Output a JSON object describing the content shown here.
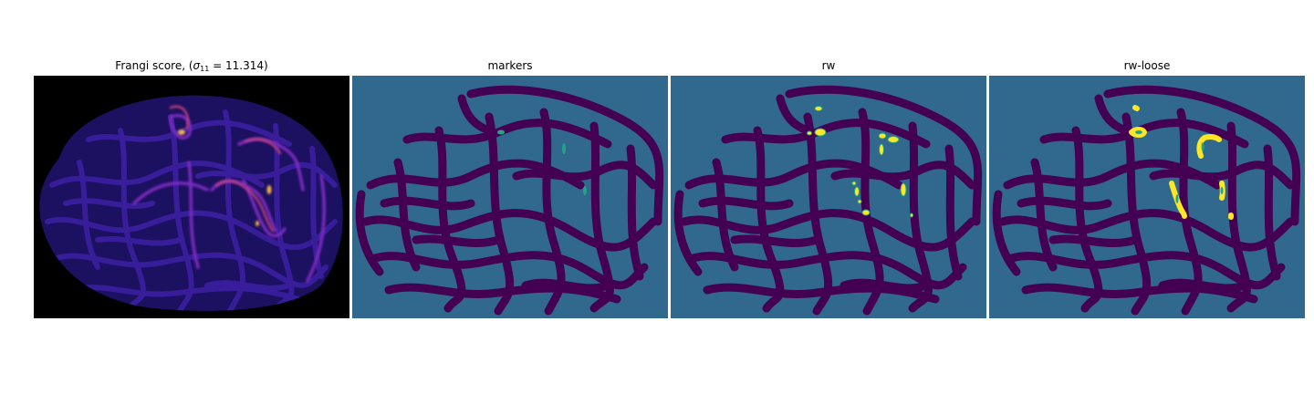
{
  "panels": [
    {
      "title_prefix": "Frangi score, (",
      "title_sigma": "σ",
      "title_sub": "11",
      "title_rest": " = 11.314)"
    },
    {
      "title": "markers"
    },
    {
      "title": "rw"
    },
    {
      "title": "rw-loose"
    }
  ],
  "colors": {
    "frangi_background": "#000000",
    "frangi_low": "#3a1f9e",
    "frangi_mid": "#8b2fc9",
    "frangi_high": "#e8a040",
    "label_background": "#31688e",
    "label_tissue": "#440154",
    "label_marker": "#21a585",
    "label_vessel": "#fde725"
  },
  "icons": {
    "panel_0": "frangi-vesselness-image",
    "panel_1": "markers-label-image",
    "panel_2": "random-walker-segmentation-image",
    "panel_3": "random-walker-loose-segmentation-image"
  }
}
